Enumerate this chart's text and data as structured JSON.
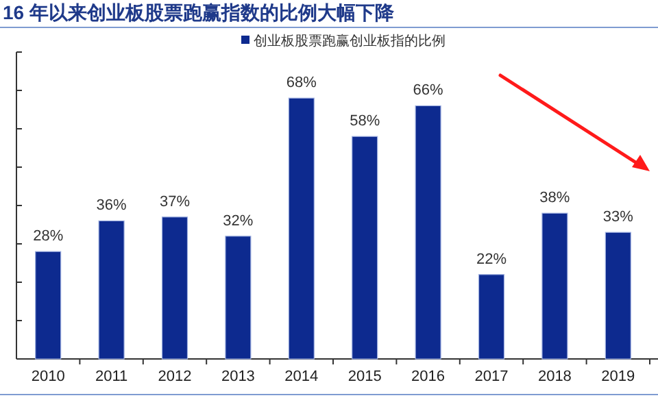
{
  "chart_data": {
    "type": "bar",
    "title": "16 年以来创业板股票跑赢指数的比例大幅下降",
    "categories": [
      "2010",
      "2011",
      "2012",
      "2013",
      "2014",
      "2015",
      "2016",
      "2017",
      "2018",
      "2019"
    ],
    "series": [
      {
        "name": "创业板股票跑赢创业板指的比例",
        "color": "#0d2a8f",
        "values": [
          28,
          36,
          37,
          32,
          68,
          58,
          66,
          22,
          38,
          33
        ],
        "value_labels": [
          "28%",
          "36%",
          "37%",
          "32%",
          "68%",
          "58%",
          "66%",
          "22%",
          "38%",
          "33%"
        ]
      }
    ],
    "ylim": [
      0,
      80
    ],
    "yticks": [
      {
        "value": 0,
        "label": null
      },
      {
        "value": 10,
        "label": null
      },
      {
        "value": 20,
        "label": null
      },
      {
        "value": 30,
        "label": null
      },
      {
        "value": 40,
        "label": null
      },
      {
        "value": 50,
        "label": null
      },
      {
        "value": 60,
        "label": null
      },
      {
        "value": 70,
        "label": null
      },
      {
        "value": 80,
        "label": null
      }
    ],
    "tick_labels": "x",
    "legend": "top"
  }
}
